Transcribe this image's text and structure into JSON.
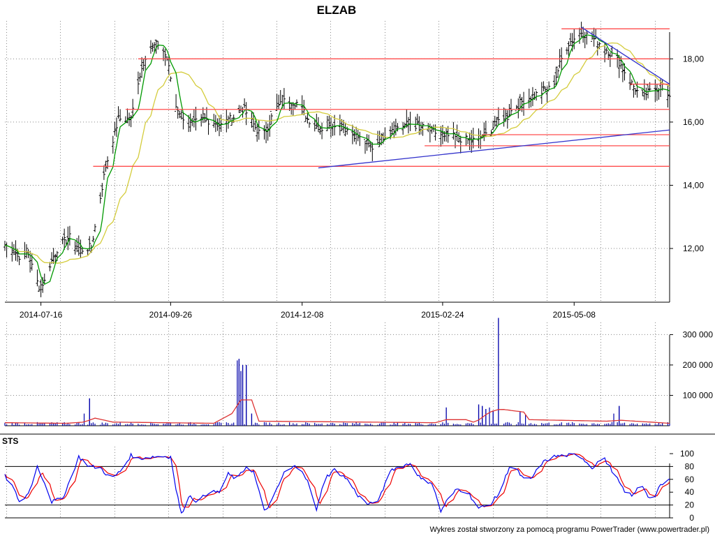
{
  "chart_data": [
    {
      "panel": "price",
      "type": "candlestick",
      "title": "ELZAB",
      "x_dates": [
        "2014-07-16",
        "2014-09-26",
        "2014-12-08",
        "2015-02-24",
        "2015-05-08"
      ],
      "y_ticks": [
        "18,00",
        "16,00",
        "14,00",
        "12,00"
      ],
      "ylim": [
        10.3,
        19.2
      ],
      "grid": true,
      "colors": {
        "bar": "#000000",
        "ma_short": "#009900",
        "ma_long": "#d4cc3c",
        "support": "#ff4d4d",
        "trend": "#3333cc"
      },
      "levels": [
        {
          "y": 18.95,
          "from": "2015-05-01",
          "to": "end"
        },
        {
          "y": 18.0,
          "from": "2014-09-08",
          "to": "end"
        },
        {
          "y": 17.2,
          "from": "2015-06-08",
          "to": "end"
        },
        {
          "y": 16.4,
          "from": "2014-09-01",
          "to": "end"
        },
        {
          "y": 15.6,
          "from": "2015-03-18",
          "to": "end"
        },
        {
          "y": 15.25,
          "from": "2015-02-14",
          "to": "end"
        },
        {
          "y": 14.6,
          "from": "2014-08-14",
          "to": "end"
        }
      ],
      "trendlines": [
        {
          "from": [
            "2014-12-17",
            14.55
          ],
          "to": [
            "end",
            15.75
          ]
        },
        {
          "from": [
            "2015-05-12",
            19.0
          ],
          "to": [
            "end",
            17.2
          ]
        }
      ],
      "close_anchors": [
        [
          "2014-06-26",
          12.1
        ],
        [
          "2014-07-01",
          11.95
        ],
        [
          "2014-07-05",
          11.7
        ],
        [
          "2014-07-09",
          11.9
        ],
        [
          "2014-07-12",
          11.2
        ],
        [
          "2014-07-15",
          10.8
        ],
        [
          "2014-07-18",
          10.95
        ],
        [
          "2014-07-21",
          11.5
        ],
        [
          "2014-07-26",
          12.1
        ],
        [
          "2014-08-01",
          12.35
        ],
        [
          "2014-08-07",
          11.95
        ],
        [
          "2014-08-13",
          12.05
        ],
        [
          "2014-08-17",
          13.3
        ],
        [
          "2014-08-21",
          14.6
        ],
        [
          "2014-08-28",
          16.1
        ],
        [
          "2014-09-04",
          16.1
        ],
        [
          "2014-09-08",
          17.3
        ],
        [
          "2014-09-13",
          18.3
        ],
        [
          "2014-09-20",
          18.5
        ],
        [
          "2014-09-24",
          18.0
        ],
        [
          "2014-09-29",
          16.5
        ],
        [
          "2014-10-06",
          15.9
        ],
        [
          "2014-10-15",
          16.1
        ],
        [
          "2014-10-24",
          15.9
        ],
        [
          "2014-11-01",
          16.2
        ],
        [
          "2014-11-05",
          16.5
        ],
        [
          "2014-11-10",
          16.0
        ],
        [
          "2014-11-16",
          15.5
        ],
        [
          "2014-11-23",
          16.4
        ],
        [
          "2014-11-29",
          16.7
        ],
        [
          "2014-12-06",
          16.6
        ],
        [
          "2014-12-11",
          16.1
        ],
        [
          "2014-12-19",
          15.8
        ],
        [
          "2014-12-27",
          16.0
        ],
        [
          "2015-01-06",
          15.6
        ],
        [
          "2015-01-16",
          15.2
        ],
        [
          "2015-01-26",
          15.8
        ],
        [
          "2015-02-06",
          15.95
        ],
        [
          "2015-02-14",
          15.8
        ],
        [
          "2015-02-23",
          15.6
        ],
        [
          "2015-03-04",
          15.5
        ],
        [
          "2015-03-12",
          15.4
        ],
        [
          "2015-03-20",
          15.6
        ],
        [
          "2015-03-28",
          16.1
        ],
        [
          "2015-04-02",
          16.3
        ],
        [
          "2015-04-10",
          16.7
        ],
        [
          "2015-04-18",
          16.9
        ],
        [
          "2015-04-26",
          17.1
        ],
        [
          "2015-05-01",
          18.0
        ],
        [
          "2015-05-05",
          18.5
        ],
        [
          "2015-05-12",
          18.85
        ],
        [
          "2015-05-20",
          18.6
        ],
        [
          "2015-05-26",
          18.3
        ],
        [
          "2015-06-02",
          17.9
        ],
        [
          "2015-06-08",
          17.3
        ],
        [
          "2015-06-14",
          16.8
        ],
        [
          "2015-06-20",
          17.0
        ],
        [
          "2015-06-26",
          17.15
        ],
        [
          "2015-06-30",
          16.7
        ]
      ]
    },
    {
      "panel": "volume",
      "type": "bar",
      "y_ticks": [
        "300 000",
        "200 000",
        "100 000"
      ],
      "ylim": [
        0,
        340000
      ],
      "grid": true,
      "colors": {
        "bar": "#0000aa",
        "average": "#dd3333"
      },
      "spikes": [
        [
          "2014-08-09",
          40000
        ],
        [
          "2014-08-12",
          90000
        ],
        [
          "2014-11-02",
          215000
        ],
        [
          "2014-11-03",
          220000
        ],
        [
          "2014-11-04",
          180000
        ],
        [
          "2014-11-05",
          200000
        ],
        [
          "2014-11-07",
          200000
        ],
        [
          "2014-11-10",
          40000
        ],
        [
          "2015-02-26",
          60000
        ],
        [
          "2015-03-16",
          70000
        ],
        [
          "2015-03-18",
          65000
        ],
        [
          "2015-03-20",
          55000
        ],
        [
          "2015-03-22",
          60000
        ],
        [
          "2015-03-24",
          50000
        ],
        [
          "2015-03-27",
          355000
        ],
        [
          "2015-04-08",
          45000
        ],
        [
          "2015-04-11",
          35000
        ],
        [
          "2015-05-30",
          40000
        ],
        [
          "2015-06-02",
          65000
        ]
      ],
      "average_anchors": [
        [
          "2014-06-26",
          10000
        ],
        [
          "2014-07-30",
          8000
        ],
        [
          "2014-08-09",
          12000
        ],
        [
          "2014-08-15",
          25000
        ],
        [
          "2014-08-25",
          12000
        ],
        [
          "2014-10-20",
          8000
        ],
        [
          "2014-10-30",
          40000
        ],
        [
          "2014-11-04",
          85000
        ],
        [
          "2014-11-10",
          85000
        ],
        [
          "2014-11-14",
          15000
        ],
        [
          "2015-02-20",
          10000
        ],
        [
          "2015-02-26",
          20000
        ],
        [
          "2015-03-09",
          20000
        ],
        [
          "2015-03-14",
          10000
        ],
        [
          "2015-03-22",
          45000
        ],
        [
          "2015-03-28",
          55000
        ],
        [
          "2015-04-10",
          45000
        ],
        [
          "2015-04-12",
          20000
        ],
        [
          "2015-05-26",
          15000
        ],
        [
          "2015-06-03",
          18000
        ],
        [
          "2015-06-30",
          8000
        ]
      ]
    },
    {
      "panel": "oscillator",
      "type": "line",
      "title": "STS",
      "y_ticks": [
        "100",
        "80",
        "60",
        "40",
        "20",
        "0"
      ],
      "ylim": [
        0,
        100
      ],
      "reference_lines": [
        80,
        20
      ],
      "colors": {
        "k": "#0000ee",
        "d": "#ee0000"
      },
      "k_anchors": [
        [
          "2014-06-26",
          65
        ],
        [
          "2014-06-30",
          50
        ],
        [
          "2014-07-05",
          20
        ],
        [
          "2014-07-10",
          45
        ],
        [
          "2014-07-14",
          80
        ],
        [
          "2014-07-18",
          55
        ],
        [
          "2014-07-22",
          25
        ],
        [
          "2014-07-28",
          30
        ],
        [
          "2014-08-02",
          65
        ],
        [
          "2014-08-06",
          95
        ],
        [
          "2014-08-12",
          80
        ],
        [
          "2014-08-18",
          78
        ],
        [
          "2014-08-24",
          60
        ],
        [
          "2014-08-30",
          75
        ],
        [
          "2014-09-04",
          98
        ],
        [
          "2014-09-08",
          92
        ],
        [
          "2014-09-15",
          95
        ],
        [
          "2014-09-22",
          96
        ],
        [
          "2014-09-26",
          95
        ],
        [
          "2014-09-29",
          45
        ],
        [
          "2014-10-02",
          5
        ],
        [
          "2014-10-06",
          35
        ],
        [
          "2014-10-11",
          25
        ],
        [
          "2014-10-17",
          40
        ],
        [
          "2014-10-23",
          40
        ],
        [
          "2014-10-28",
          68
        ],
        [
          "2014-11-02",
          60
        ],
        [
          "2014-11-07",
          80
        ],
        [
          "2014-11-11",
          72
        ],
        [
          "2014-11-17",
          10
        ],
        [
          "2014-11-21",
          25
        ],
        [
          "2014-11-28",
          70
        ],
        [
          "2014-12-04",
          80
        ],
        [
          "2014-12-08",
          75
        ],
        [
          "2014-12-12",
          50
        ],
        [
          "2014-12-16",
          10
        ],
        [
          "2014-12-20",
          60
        ],
        [
          "2014-12-26",
          75
        ],
        [
          "2015-01-02",
          60
        ],
        [
          "2015-01-08",
          35
        ],
        [
          "2015-01-14",
          20
        ],
        [
          "2015-01-20",
          30
        ],
        [
          "2015-01-26",
          75
        ],
        [
          "2015-02-01",
          80
        ],
        [
          "2015-02-06",
          85
        ],
        [
          "2015-02-12",
          60
        ],
        [
          "2015-02-18",
          55
        ],
        [
          "2015-02-23",
          10
        ],
        [
          "2015-02-26",
          25
        ],
        [
          "2015-03-04",
          45
        ],
        [
          "2015-03-10",
          40
        ],
        [
          "2015-03-16",
          15
        ],
        [
          "2015-03-22",
          20
        ],
        [
          "2015-03-28",
          40
        ],
        [
          "2015-04-02",
          80
        ],
        [
          "2015-04-06",
          75
        ],
        [
          "2015-04-10",
          60
        ],
        [
          "2015-04-14",
          60
        ],
        [
          "2015-04-20",
          85
        ],
        [
          "2015-04-26",
          95
        ],
        [
          "2015-05-02",
          97
        ],
        [
          "2015-05-08",
          98
        ],
        [
          "2015-05-12",
          95
        ],
        [
          "2015-05-18",
          78
        ],
        [
          "2015-05-24",
          95
        ],
        [
          "2015-05-30",
          70
        ],
        [
          "2015-06-05",
          40
        ],
        [
          "2015-06-10",
          35
        ],
        [
          "2015-06-14",
          55
        ],
        [
          "2015-06-20",
          25
        ],
        [
          "2015-06-25",
          50
        ],
        [
          "2015-06-30",
          60
        ]
      ]
    }
  ],
  "footer": {
    "credit": "Wykres został stworzony za pomocą programu PowerTrader (www.powertrader.pl)"
  }
}
